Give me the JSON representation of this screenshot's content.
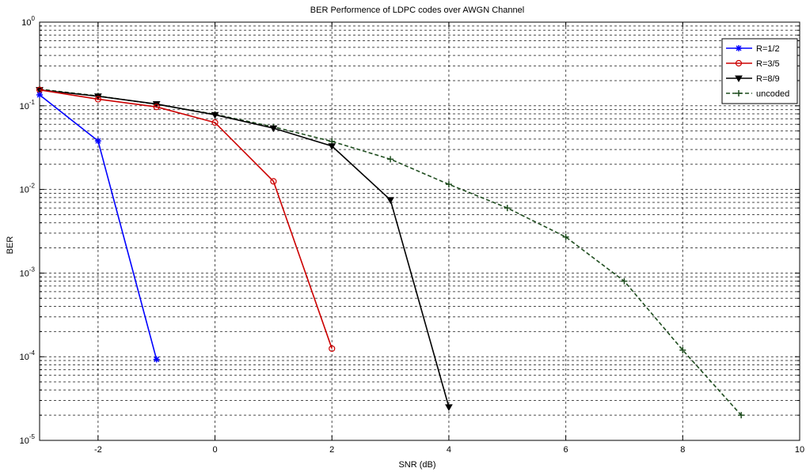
{
  "chart_data": {
    "type": "line",
    "title": "BER Performence of LDPC codes over AWGN Channel",
    "xlabel": "SNR (dB)",
    "ylabel": "BER",
    "xlim": [
      -3,
      10
    ],
    "ylim": [
      1e-05,
      1
    ],
    "yscale": "log",
    "grid": true,
    "legend_position": "top-right",
    "xticks": [
      -2,
      0,
      2,
      4,
      6,
      8,
      10
    ],
    "yticks": [
      {
        "value": 1,
        "base": "10",
        "exp": "0"
      },
      {
        "value": 0.1,
        "base": "10",
        "exp": "-1"
      },
      {
        "value": 0.01,
        "base": "10",
        "exp": "-2"
      },
      {
        "value": 0.001,
        "base": "10",
        "exp": "-3"
      },
      {
        "value": 0.0001,
        "base": "10",
        "exp": "-4"
      },
      {
        "value": 1e-05,
        "base": "10",
        "exp": "-5"
      }
    ],
    "series": [
      {
        "name": "R=1/2",
        "color": "#0000ff",
        "dash": false,
        "marker": "star",
        "x": [
          -3,
          -2,
          -1
        ],
        "y": [
          0.135,
          0.038,
          9.3e-05
        ]
      },
      {
        "name": "R=3/5",
        "color": "#cc0000",
        "dash": false,
        "marker": "circle",
        "x": [
          -3,
          -2,
          -1,
          0,
          1,
          2
        ],
        "y": [
          0.155,
          0.12,
          0.097,
          0.063,
          0.0125,
          0.000125
        ]
      },
      {
        "name": "R=8/9",
        "color": "#000000",
        "dash": false,
        "marker": "triangle-down",
        "x": [
          -3,
          -2,
          -1,
          0,
          1,
          2,
          3,
          4
        ],
        "y": [
          0.155,
          0.13,
          0.105,
          0.078,
          0.054,
          0.033,
          0.0075,
          2.5e-05
        ]
      },
      {
        "name": "uncoded",
        "color": "#1f4d1f",
        "dash": true,
        "marker": "plus",
        "x": [
          -3,
          -2,
          -1,
          0,
          1,
          2,
          3,
          4,
          5,
          6,
          7,
          8,
          9
        ],
        "y": [
          0.158,
          0.131,
          0.104,
          0.079,
          0.056,
          0.0375,
          0.023,
          0.0115,
          0.006,
          0.0027,
          0.0008,
          0.00012,
          2e-05
        ]
      }
    ]
  }
}
